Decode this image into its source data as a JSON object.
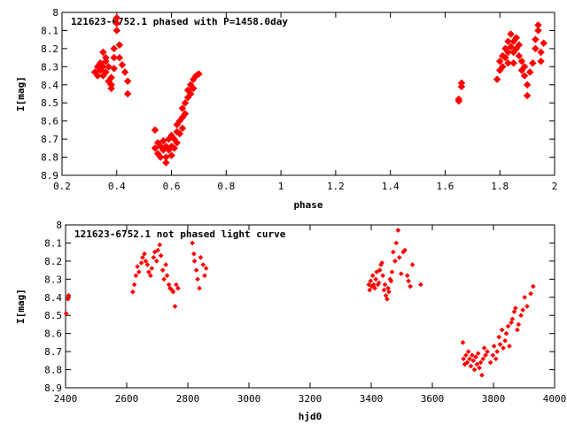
{
  "chart_data": [
    {
      "type": "scatter",
      "title": "121623-6752.1 phased with P=1458.0day",
      "xlabel": "phase",
      "ylabel": "I[mag]",
      "xlim": [
        0.2,
        2.0
      ],
      "ylim": [
        8.9,
        8.0
      ],
      "y_inverted": true,
      "grid": false,
      "marker_color": "#ff0000",
      "xticks": [
        "0.2",
        "0.4",
        "0.6",
        "0.8",
        "1",
        "1.2",
        "1.4",
        "1.6",
        "1.8",
        "2"
      ],
      "yticks": [
        "8",
        "8.1",
        "8.2",
        "8.3",
        "8.4",
        "8.5",
        "8.6",
        "8.7",
        "8.8",
        "8.9"
      ],
      "series": [
        {
          "x": [
            0.32,
            0.33,
            0.33,
            0.34,
            0.34,
            0.35,
            0.35,
            0.35,
            0.36,
            0.36,
            0.36,
            0.37,
            0.37,
            0.38,
            0.38,
            0.38,
            0.39,
            0.39,
            0.39,
            0.4,
            0.4,
            0.4,
            0.41,
            0.41,
            0.42,
            0.43,
            0.44,
            0.44,
            0.54,
            0.54,
            0.55,
            0.55,
            0.56,
            0.56,
            0.57,
            0.57,
            0.58,
            0.58,
            0.58,
            0.59,
            0.59,
            0.6,
            0.6,
            0.6,
            0.61,
            0.61,
            0.62,
            0.62,
            0.62,
            0.63,
            0.63,
            0.64,
            0.64,
            0.64,
            0.65,
            0.65,
            0.66,
            0.66,
            0.67,
            0.67,
            0.68,
            0.68,
            0.69,
            0.7,
            1.65,
            1.65,
            1.66,
            1.66,
            1.79,
            1.8,
            1.8,
            1.81,
            1.81,
            1.82,
            1.82,
            1.83,
            1.83,
            1.83,
            1.84,
            1.84,
            1.85,
            1.85,
            1.85,
            1.86,
            1.86,
            1.87,
            1.87,
            1.88,
            1.88,
            1.89,
            1.89,
            1.9,
            1.9,
            1.91,
            1.92,
            1.93,
            1.93,
            1.94,
            1.94,
            1.95,
            1.95,
            1.96
          ],
          "y": [
            8.33,
            8.3,
            8.35,
            8.32,
            8.28,
            8.3,
            8.22,
            8.35,
            8.27,
            8.33,
            8.25,
            8.3,
            8.38,
            8.36,
            8.4,
            8.42,
            8.31,
            8.25,
            8.2,
            8.1,
            8.03,
            8.06,
            8.18,
            8.25,
            8.29,
            8.33,
            8.38,
            8.45,
            8.65,
            8.75,
            8.72,
            8.78,
            8.74,
            8.8,
            8.76,
            8.71,
            8.8,
            8.74,
            8.83,
            8.76,
            8.7,
            8.79,
            8.74,
            8.68,
            8.75,
            8.7,
            8.72,
            8.66,
            8.62,
            8.67,
            8.6,
            8.64,
            8.58,
            8.53,
            8.56,
            8.5,
            8.47,
            8.43,
            8.45,
            8.4,
            8.37,
            8.42,
            8.35,
            8.34,
            8.49,
            8.48,
            8.41,
            8.39,
            8.37,
            8.32,
            8.27,
            8.24,
            8.3,
            8.2,
            8.25,
            8.16,
            8.22,
            8.28,
            8.19,
            8.12,
            8.16,
            8.22,
            8.28,
            8.14,
            8.2,
            8.18,
            8.24,
            8.27,
            8.32,
            8.35,
            8.3,
            8.4,
            8.46,
            8.33,
            8.28,
            8.2,
            8.15,
            8.1,
            8.07,
            8.22,
            8.27,
            8.17
          ]
        }
      ]
    },
    {
      "type": "scatter",
      "title": "121623-6752.1 not phased light curve",
      "xlabel": "hjd0",
      "ylabel": "I[mag]",
      "xlim": [
        2400,
        4000
      ],
      "ylim": [
        8.9,
        8.0
      ],
      "y_inverted": true,
      "grid": false,
      "marker_color": "#ff0000",
      "xticks": [
        "2400",
        "2600",
        "2800",
        "3000",
        "3200",
        "3400",
        "3600",
        "3800",
        "4000"
      ],
      "yticks": [
        "8",
        "8.1",
        "8.2",
        "8.3",
        "8.4",
        "8.5",
        "8.6",
        "8.7",
        "8.8",
        "8.9"
      ],
      "series": [
        {
          "x": [
            2402,
            2408,
            2410,
            2620,
            2625,
            2630,
            2635,
            2640,
            2648,
            2652,
            2658,
            2662,
            2668,
            2672,
            2678,
            2682,
            2688,
            2692,
            2698,
            2702,
            2708,
            2712,
            2718,
            2722,
            2728,
            2732,
            2738,
            2742,
            2748,
            2752,
            2758,
            2762,
            2768,
            2815,
            2820,
            2822,
            2828,
            2832,
            2838,
            2842,
            2850,
            2855,
            2860,
            3392,
            3395,
            3398,
            3402,
            3405,
            3408,
            3412,
            3415,
            3418,
            3422,
            3425,
            3428,
            3432,
            3435,
            3438,
            3442,
            3445,
            3448,
            3452,
            3455,
            3458,
            3462,
            3465,
            3468,
            3472,
            3478,
            3482,
            3488,
            3492,
            3498,
            3505,
            3510,
            3518,
            3522,
            3528,
            3535,
            3562,
            3700,
            3702,
            3706,
            3710,
            3714,
            3718,
            3722,
            3726,
            3730,
            3734,
            3738,
            3742,
            3746,
            3750,
            3754,
            3758,
            3762,
            3766,
            3770,
            3774,
            3780,
            3790,
            3798,
            3802,
            3808,
            3812,
            3818,
            3822,
            3828,
            3832,
            3838,
            3842,
            3848,
            3852,
            3858,
            3862,
            3868,
            3872,
            3878,
            3882,
            3890,
            3896,
            3902,
            3910,
            3922,
            3930
          ],
          "y": [
            8.49,
            8.41,
            8.39,
            8.37,
            8.33,
            8.28,
            8.23,
            8.26,
            8.21,
            8.18,
            8.16,
            8.2,
            8.22,
            8.26,
            8.28,
            8.24,
            8.18,
            8.15,
            8.2,
            8.14,
            8.11,
            8.17,
            8.25,
            8.3,
            8.22,
            8.28,
            8.33,
            8.35,
            8.36,
            8.37,
            8.45,
            8.33,
            8.35,
            8.1,
            8.16,
            8.2,
            8.25,
            8.3,
            8.35,
            8.18,
            8.22,
            8.28,
            8.24,
            8.33,
            8.36,
            8.31,
            8.34,
            8.28,
            8.33,
            8.35,
            8.3,
            8.26,
            8.33,
            8.32,
            8.25,
            8.22,
            8.21,
            8.28,
            8.36,
            8.33,
            8.39,
            8.41,
            8.35,
            8.37,
            8.3,
            8.31,
            8.26,
            8.15,
            8.2,
            8.1,
            8.03,
            8.18,
            8.27,
            8.15,
            8.14,
            8.28,
            8.31,
            8.34,
            8.22,
            8.33,
            8.65,
            8.74,
            8.77,
            8.72,
            8.76,
            8.7,
            8.74,
            8.78,
            8.72,
            8.75,
            8.8,
            8.73,
            8.77,
            8.71,
            8.79,
            8.76,
            8.83,
            8.74,
            8.68,
            8.72,
            8.7,
            8.76,
            8.72,
            8.67,
            8.74,
            8.7,
            8.62,
            8.66,
            8.58,
            8.68,
            8.64,
            8.6,
            8.56,
            8.67,
            8.54,
            8.52,
            8.48,
            8.46,
            8.58,
            8.55,
            8.5,
            8.47,
            8.4,
            8.45,
            8.38,
            8.34
          ]
        }
      ]
    }
  ]
}
